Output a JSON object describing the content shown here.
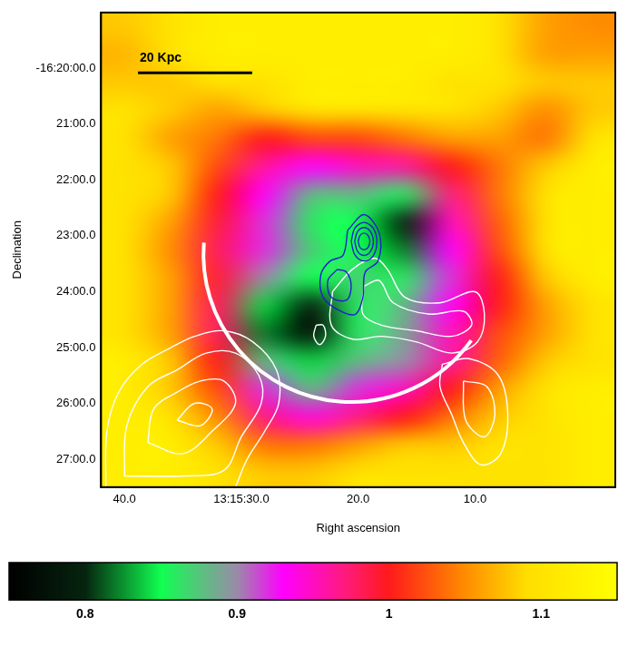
{
  "chart_data": {
    "type": "heatmap",
    "x_label": "Right ascension",
    "y_label": "Declination",
    "grid": false,
    "xlim": [
      42,
      -2
    ],
    "ylim": [
      -27.5,
      -19
    ],
    "xticks": [
      {
        "value": 40,
        "label": "40.0"
      },
      {
        "value": 30,
        "label": "13:15:30.0"
      },
      {
        "value": 20,
        "label": "20.0"
      },
      {
        "value": 10,
        "label": "10.0"
      }
    ],
    "yticks": [
      {
        "value": -20,
        "label": "-16:20:00.0"
      },
      {
        "value": -21,
        "label": "21:00.0"
      },
      {
        "value": -22,
        "label": "22:00.0"
      },
      {
        "value": -23,
        "label": "23:00.0"
      },
      {
        "value": -24,
        "label": "24:00.0"
      },
      {
        "value": -25,
        "label": "25:00.0"
      },
      {
        "value": -26,
        "label": "26:00.0"
      },
      {
        "value": -27,
        "label": "27:00.0"
      }
    ],
    "x": [
      40,
      36,
      32,
      28,
      24,
      20,
      16,
      12,
      8,
      4,
      0
    ],
    "y": [
      -19.25,
      -19.75,
      -20.25,
      -20.75,
      -21.25,
      -21.75,
      -22.25,
      -22.75,
      -23.25,
      -23.75,
      -24.25,
      -24.75,
      -25.25,
      -25.75,
      -26.25,
      -26.75,
      -27.25
    ],
    "z": [
      [
        1.08,
        1.1,
        1.12,
        1.12,
        1.12,
        1.12,
        1.12,
        1.12,
        1.1,
        1.06,
        1.05
      ],
      [
        1.07,
        1.1,
        1.12,
        1.12,
        1.12,
        1.12,
        1.12,
        1.12,
        1.1,
        1.06,
        1.06
      ],
      [
        1.08,
        1.08,
        1.1,
        1.1,
        1.12,
        1.12,
        1.12,
        1.1,
        1.1,
        1.08,
        1.08
      ],
      [
        1.1,
        1.08,
        1.06,
        1.08,
        1.1,
        1.1,
        1.1,
        1.1,
        1.08,
        1.05,
        1.08
      ],
      [
        1.1,
        1.06,
        1.04,
        1.0,
        1.02,
        1.02,
        1.04,
        1.06,
        1.06,
        1.04,
        1.1
      ],
      [
        1.1,
        1.08,
        1.02,
        0.96,
        0.93,
        0.95,
        0.96,
        1.0,
        1.04,
        1.08,
        1.12
      ],
      [
        1.1,
        1.08,
        1.0,
        0.93,
        0.88,
        0.88,
        0.86,
        0.97,
        1.04,
        1.1,
        1.12
      ],
      [
        1.1,
        1.06,
        0.99,
        0.92,
        0.86,
        0.85,
        0.8,
        0.95,
        1.03,
        1.1,
        1.12
      ],
      [
        1.1,
        1.05,
        0.98,
        0.92,
        0.87,
        0.85,
        0.82,
        0.93,
        1.02,
        1.1,
        1.12
      ],
      [
        1.1,
        1.06,
        0.99,
        0.9,
        0.85,
        0.87,
        0.86,
        0.92,
        1.0,
        1.08,
        1.12
      ],
      [
        1.1,
        1.06,
        0.98,
        0.84,
        0.8,
        0.86,
        0.88,
        0.93,
        1.0,
        1.06,
        1.1
      ],
      [
        1.1,
        1.06,
        0.98,
        0.82,
        0.78,
        0.86,
        0.89,
        0.95,
        1.02,
        1.06,
        1.1
      ],
      [
        1.12,
        1.08,
        1.0,
        0.88,
        0.84,
        0.88,
        0.9,
        0.96,
        1.03,
        1.08,
        1.1
      ],
      [
        1.12,
        1.08,
        1.02,
        0.92,
        0.88,
        0.92,
        0.95,
        1.0,
        1.06,
        1.1,
        1.12
      ],
      [
        1.12,
        1.1,
        1.05,
        0.97,
        0.94,
        0.97,
        1.0,
        1.04,
        1.08,
        1.1,
        1.12
      ],
      [
        1.12,
        1.12,
        1.08,
        1.04,
        1.04,
        1.06,
        1.08,
        1.08,
        1.1,
        1.1,
        1.12
      ],
      [
        1.12,
        1.12,
        1.1,
        1.08,
        1.08,
        1.1,
        1.1,
        1.1,
        1.1,
        1.1,
        1.12
      ]
    ],
    "colorbar": {
      "lim": [
        0.75,
        1.15
      ],
      "ticks": [
        0.8,
        0.9,
        1,
        1.1
      ]
    },
    "contours": [
      {
        "color": "#1f1fd0",
        "points": [
          [
            20.0,
            -23.1
          ],
          [
            19.85,
            -22.995
          ],
          [
            19.5,
            -22.95
          ],
          [
            19.15,
            -22.995
          ],
          [
            19.0,
            -23.1
          ],
          [
            19.15,
            -23.205
          ],
          [
            19.5,
            -23.25
          ],
          [
            19.85,
            -23.205
          ],
          [
            20.0,
            -23.1
          ]
        ]
      },
      {
        "color": "#1f1fd0",
        "points": [
          [
            20.3,
            -23.1
          ],
          [
            20.06,
            -22.925
          ],
          [
            19.5,
            -22.85
          ],
          [
            18.94,
            -22.925
          ],
          [
            18.7,
            -23.1
          ],
          [
            18.94,
            -23.275
          ],
          [
            19.5,
            -23.35
          ],
          [
            20.06,
            -23.275
          ],
          [
            20.3,
            -23.1
          ]
        ]
      },
      {
        "color": "#1f1fd0",
        "points": [
          [
            20.6,
            -23.1
          ],
          [
            20.28,
            -22.86
          ],
          [
            19.5,
            -22.76
          ],
          [
            18.72,
            -22.86
          ],
          [
            18.4,
            -23.1
          ],
          [
            18.72,
            -23.36
          ],
          [
            19.5,
            -23.45
          ],
          [
            20.28,
            -23.34
          ],
          [
            20.6,
            -23.1
          ]
        ]
      },
      {
        "color": "#1f1fd0",
        "points": [
          [
            20.9,
            -22.9
          ],
          [
            19.5,
            -22.62
          ],
          [
            18.2,
            -22.95
          ],
          [
            18.3,
            -23.45
          ],
          [
            19.4,
            -23.65
          ],
          [
            19.6,
            -24.1
          ],
          [
            20.2,
            -24.4
          ],
          [
            21.5,
            -24.35
          ],
          [
            23.0,
            -24.1
          ],
          [
            23.2,
            -23.7
          ],
          [
            22.4,
            -23.45
          ],
          [
            21.3,
            -23.35
          ],
          [
            20.9,
            -22.9
          ]
        ]
      },
      {
        "color": "#1f1fd0",
        "points": [
          [
            21.8,
            -23.6
          ],
          [
            22.6,
            -23.8
          ],
          [
            22.3,
            -24.1
          ],
          [
            21.0,
            -24.15
          ],
          [
            20.6,
            -23.9
          ],
          [
            21.0,
            -23.65
          ],
          [
            21.8,
            -23.6
          ]
        ]
      },
      {
        "color": "#ffffff",
        "points": [
          [
            22.2,
            -24.0
          ],
          [
            20.5,
            -23.6
          ],
          [
            18.6,
            -23.4
          ],
          [
            17.5,
            -23.6
          ],
          [
            16.0,
            -24.1
          ],
          [
            13.0,
            -24.2
          ],
          [
            10.0,
            -24.0
          ],
          [
            9.2,
            -24.4
          ],
          [
            9.8,
            -24.9
          ],
          [
            12.0,
            -25.1
          ],
          [
            15.0,
            -24.9
          ],
          [
            18.0,
            -24.8
          ],
          [
            20.5,
            -24.85
          ],
          [
            22.3,
            -24.6
          ],
          [
            22.2,
            -24.0
          ]
        ]
      },
      {
        "color": "#ffffff",
        "points": [
          [
            19.5,
            -23.9
          ],
          [
            18.2,
            -23.8
          ],
          [
            17.0,
            -24.2
          ],
          [
            14.0,
            -24.4
          ],
          [
            11.0,
            -24.35
          ],
          [
            10.3,
            -24.6
          ],
          [
            12.0,
            -24.8
          ],
          [
            15.0,
            -24.7
          ],
          [
            18.0,
            -24.6
          ],
          [
            19.6,
            -24.4
          ],
          [
            19.5,
            -23.9
          ]
        ]
      },
      {
        "color": "#ffffff",
        "points": [
          [
            23.6,
            -24.6
          ],
          [
            23.0,
            -24.6
          ],
          [
            22.8,
            -24.8
          ],
          [
            23.3,
            -24.95
          ],
          [
            23.8,
            -24.8
          ],
          [
            23.6,
            -24.6
          ]
        ]
      },
      {
        "color": "#ffffff",
        "points": [
          [
            41.6,
            -27.5
          ],
          [
            41.5,
            -26.5
          ],
          [
            40.5,
            -25.8
          ],
          [
            38.5,
            -25.3
          ],
          [
            36.0,
            -25.0
          ],
          [
            34.0,
            -24.8
          ],
          [
            31.5,
            -24.7
          ],
          [
            29.0,
            -24.9
          ],
          [
            27.0,
            -25.4
          ],
          [
            26.8,
            -26.0
          ],
          [
            28.0,
            -26.5
          ],
          [
            29.5,
            -27.0
          ],
          [
            30.5,
            -27.5
          ]
        ]
      },
      {
        "color": "#ffffff",
        "points": [
          [
            40.0,
            -27.3
          ],
          [
            39.8,
            -26.4
          ],
          [
            38.0,
            -25.7
          ],
          [
            35.5,
            -25.4
          ],
          [
            33.0,
            -25.1
          ],
          [
            30.5,
            -25.1
          ],
          [
            28.5,
            -25.5
          ],
          [
            28.3,
            -26.0
          ],
          [
            30.0,
            -26.6
          ],
          [
            31.5,
            -27.2
          ],
          [
            35.0,
            -27.3
          ],
          [
            40.0,
            -27.3
          ]
        ]
      },
      {
        "color": "#ffffff",
        "points": [
          [
            38.0,
            -26.7
          ],
          [
            37.5,
            -26.1
          ],
          [
            35.5,
            -25.8
          ],
          [
            33.5,
            -25.6
          ],
          [
            31.5,
            -25.6
          ],
          [
            30.5,
            -26.0
          ],
          [
            32.5,
            -26.5
          ],
          [
            35.0,
            -26.9
          ],
          [
            38.0,
            -26.7
          ]
        ]
      },
      {
        "color": "#ffffff",
        "points": [
          [
            35.5,
            -26.3
          ],
          [
            34.0,
            -26.0
          ],
          [
            32.5,
            -26.1
          ],
          [
            33.5,
            -26.4
          ],
          [
            35.5,
            -26.3
          ]
        ]
      },
      {
        "color": "#ffffff",
        "points": [
          [
            12.8,
            -25.3
          ],
          [
            10.5,
            -25.2
          ],
          [
            8.0,
            -25.5
          ],
          [
            7.2,
            -26.2
          ],
          [
            7.8,
            -26.9
          ],
          [
            9.5,
            -27.1
          ],
          [
            11.0,
            -26.7
          ],
          [
            12.0,
            -26.2
          ],
          [
            13.0,
            -25.7
          ],
          [
            12.8,
            -25.3
          ]
        ]
      },
      {
        "color": "#ffffff",
        "points": [
          [
            11.0,
            -25.6
          ],
          [
            9.0,
            -25.7
          ],
          [
            8.3,
            -26.2
          ],
          [
            9.2,
            -26.6
          ],
          [
            10.8,
            -26.3
          ],
          [
            11.0,
            -25.6
          ]
        ]
      }
    ],
    "arc": {
      "center": [
        20.6,
        -23.33
      ],
      "from": [
        33.2,
        -23.12
      ],
      "to": [
        10.0,
        -24.92
      ]
    },
    "scale_bar": {
      "label": "20 Kpc",
      "from": [
        38.84,
        -20.08
      ],
      "to": [
        29.07,
        -20.08
      ]
    }
  }
}
